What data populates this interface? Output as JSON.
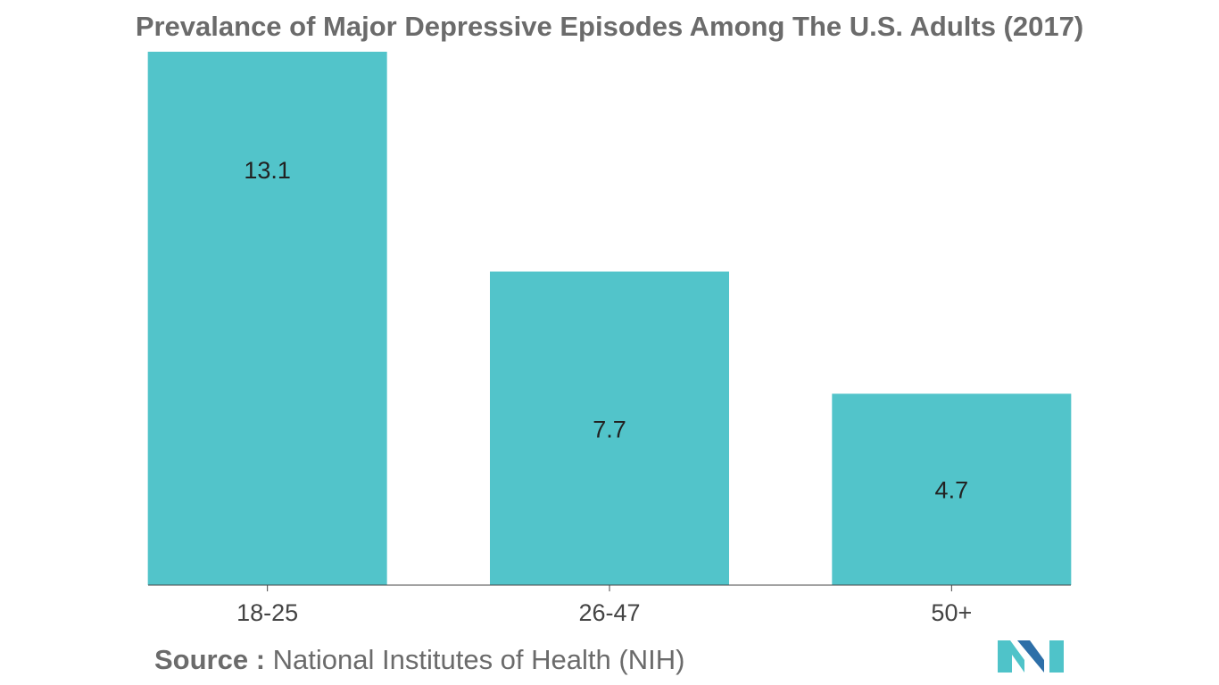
{
  "title": "Prevalance of Major Depressive Episodes Among The U.S. Adults (2017)",
  "source": {
    "label": "Source :",
    "text": "National Institutes of Health (NIH)"
  },
  "logo": {
    "icon": "company-logo-icon",
    "colors": [
      "#4fc3c9",
      "#2d6fa8"
    ]
  },
  "chart_data": {
    "type": "bar",
    "categories": [
      "18-25",
      "26-47",
      "50+"
    ],
    "values": [
      13.1,
      7.7,
      4.7
    ],
    "value_labels": [
      "13.1",
      "7.7",
      "4.7"
    ],
    "title": "Prevalance of Major Depressive Episodes Among The U.S. Adults (2017)",
    "xlabel": "",
    "ylabel": "",
    "ylim": [
      0,
      13.1
    ],
    "grid": false,
    "legend": "none",
    "bar_color": "#52c4ca",
    "axis_color": "#444444",
    "label_color": "#222222",
    "tick_label_color": "#444444"
  }
}
